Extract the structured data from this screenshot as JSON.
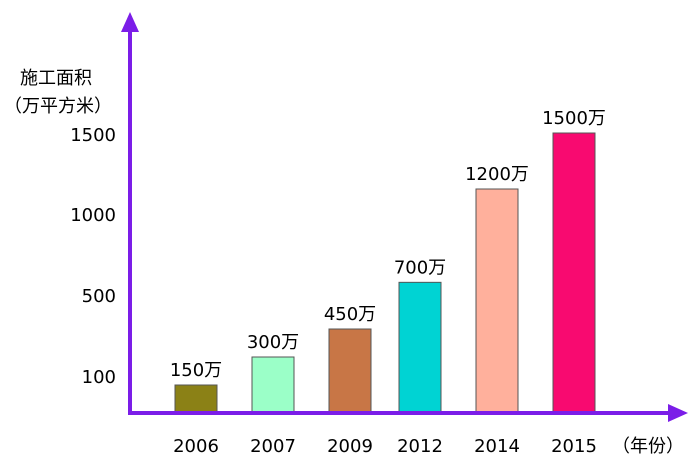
{
  "chart_data": {
    "type": "bar",
    "ylabel_line1": "施工面积",
    "ylabel_line2": "（万平方米）",
    "xlabel": "（年份）",
    "categories": [
      "2006",
      "2007",
      "2009",
      "2012",
      "2014",
      "2015"
    ],
    "values": [
      150,
      300,
      450,
      700,
      1200,
      1500
    ],
    "data_labels": [
      "150万",
      "300万",
      "450万",
      "700万",
      "1200万",
      "1500万"
    ],
    "y_tick_labels": [
      "100",
      "500",
      "1000",
      "1500"
    ],
    "ylim": [
      0,
      1500
    ],
    "colors": [
      "#8b8116",
      "#9bffc8",
      "#c87646",
      "#00d3d3",
      "#ffb09c",
      "#f80a70"
    ],
    "axis_color": "#7b1de8",
    "grid": false,
    "legend": "none"
  }
}
